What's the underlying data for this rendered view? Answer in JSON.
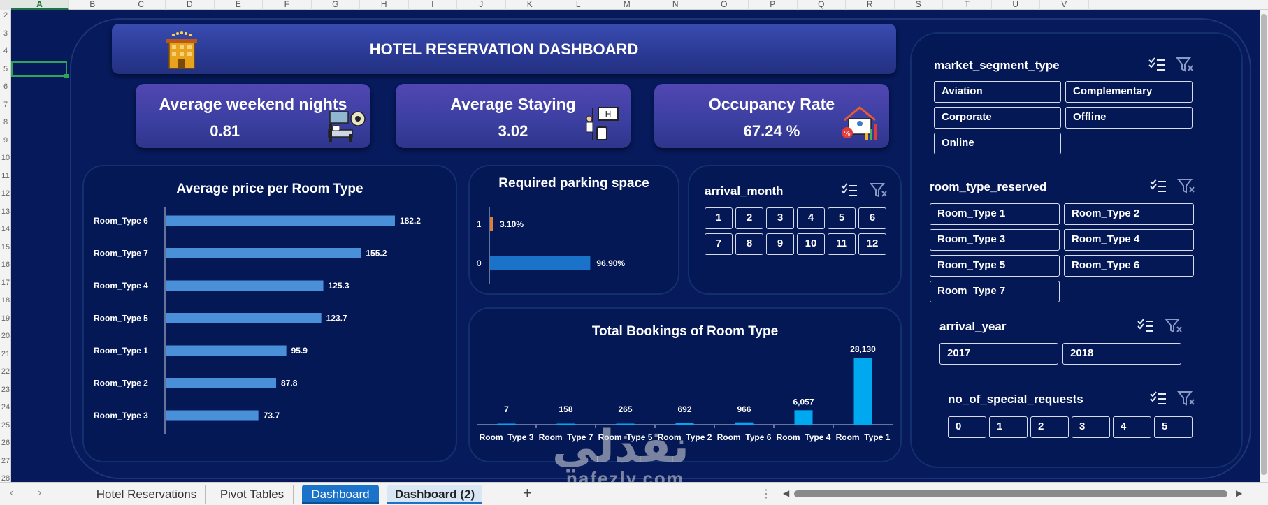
{
  "columns": [
    "A",
    "B",
    "C",
    "D",
    "E",
    "F",
    "G",
    "H",
    "I",
    "J",
    "K",
    "L",
    "M",
    "N",
    "O",
    "P",
    "Q",
    "R",
    "S",
    "T",
    "U",
    "V"
  ],
  "rows": [
    "2",
    "3",
    "4",
    "5",
    "6",
    "7",
    "8",
    "9",
    "10",
    "11",
    "12",
    "13",
    "14",
    "15",
    "16",
    "17",
    "18",
    "19",
    "20",
    "21",
    "22",
    "23",
    "24",
    "25",
    "26",
    "27",
    "28"
  ],
  "dashboard": {
    "title": "HOTEL RESERVATION DASHBOARD",
    "kpis": [
      {
        "label": "Average weekend nights",
        "value": "0.81",
        "icon": "bed-bath-icon"
      },
      {
        "label": "Average Staying",
        "value": "3.02",
        "icon": "bellhop-luggage-icon"
      },
      {
        "label": "Occupancy Rate",
        "value": "67.24 %",
        "icon": "house-discount-chart-icon"
      }
    ]
  },
  "chart_data": [
    {
      "type": "bar",
      "orientation": "horizontal",
      "title": "Average price per Room Type",
      "categories": [
        "Room_Type 6",
        "Room_Type 7",
        "Room_Type 4",
        "Room_Type 5",
        "Room_Type 1",
        "Room_Type 2",
        "Room_Type 3"
      ],
      "values": [
        182.2,
        155.2,
        125.3,
        123.7,
        95.9,
        87.8,
        73.7
      ],
      "value_labels": [
        "182.2",
        "155.2",
        "125.3",
        "123.7",
        "95.9",
        "87.8",
        "73.7"
      ],
      "color": "#4a90d9"
    },
    {
      "type": "bar",
      "orientation": "horizontal",
      "title": "Required parking space",
      "categories": [
        "1",
        "0"
      ],
      "values": [
        3.1,
        96.9
      ],
      "value_labels": [
        "3.10%",
        "96.90%"
      ],
      "colors": [
        "#e07b39",
        "#1a73c9"
      ]
    },
    {
      "type": "bar",
      "orientation": "vertical",
      "title": "Total Bookings of Room Type",
      "categories": [
        "Room_Type 3",
        "Room_Type 7",
        "Room_Type 5",
        "Room_Type 2",
        "Room_Type 6",
        "Room_Type 4",
        "Room_Type 1"
      ],
      "values": [
        7,
        158,
        265,
        692,
        966,
        6057,
        28130
      ],
      "value_labels": [
        "7",
        "158",
        "265",
        "692",
        "966",
        "6,057",
        "28,130"
      ],
      "color": "#00a8f0"
    }
  ],
  "slicers": {
    "arrival_month": {
      "title": "arrival_month",
      "items": [
        "1",
        "2",
        "3",
        "4",
        "5",
        "6",
        "7",
        "8",
        "9",
        "10",
        "11",
        "12"
      ]
    },
    "market_segment_type": {
      "title": "market_segment_type",
      "items": [
        "Aviation",
        "Complementary",
        "Corporate",
        "Offline",
        "Online"
      ]
    },
    "room_type_reserved": {
      "title": "room_type_reserved",
      "items": [
        "Room_Type 1",
        "Room_Type 2",
        "Room_Type 3",
        "Room_Type 4",
        "Room_Type 5",
        "Room_Type 6",
        "Room_Type 7"
      ]
    },
    "arrival_year": {
      "title": "arrival_year",
      "items": [
        "2017",
        "2018"
      ]
    },
    "no_of_special_requests": {
      "title": "no_of_special_requests",
      "items": [
        "0",
        "1",
        "2",
        "3",
        "4",
        "5"
      ]
    }
  },
  "tabs": [
    "Hotel Reservations",
    "Pivot Tables",
    "Dashboard",
    "Dashboard  (2)"
  ],
  "active_tab": "Dashboard",
  "watermark": {
    "arabic": "نفذلي",
    "latin": "nafezly.com"
  }
}
